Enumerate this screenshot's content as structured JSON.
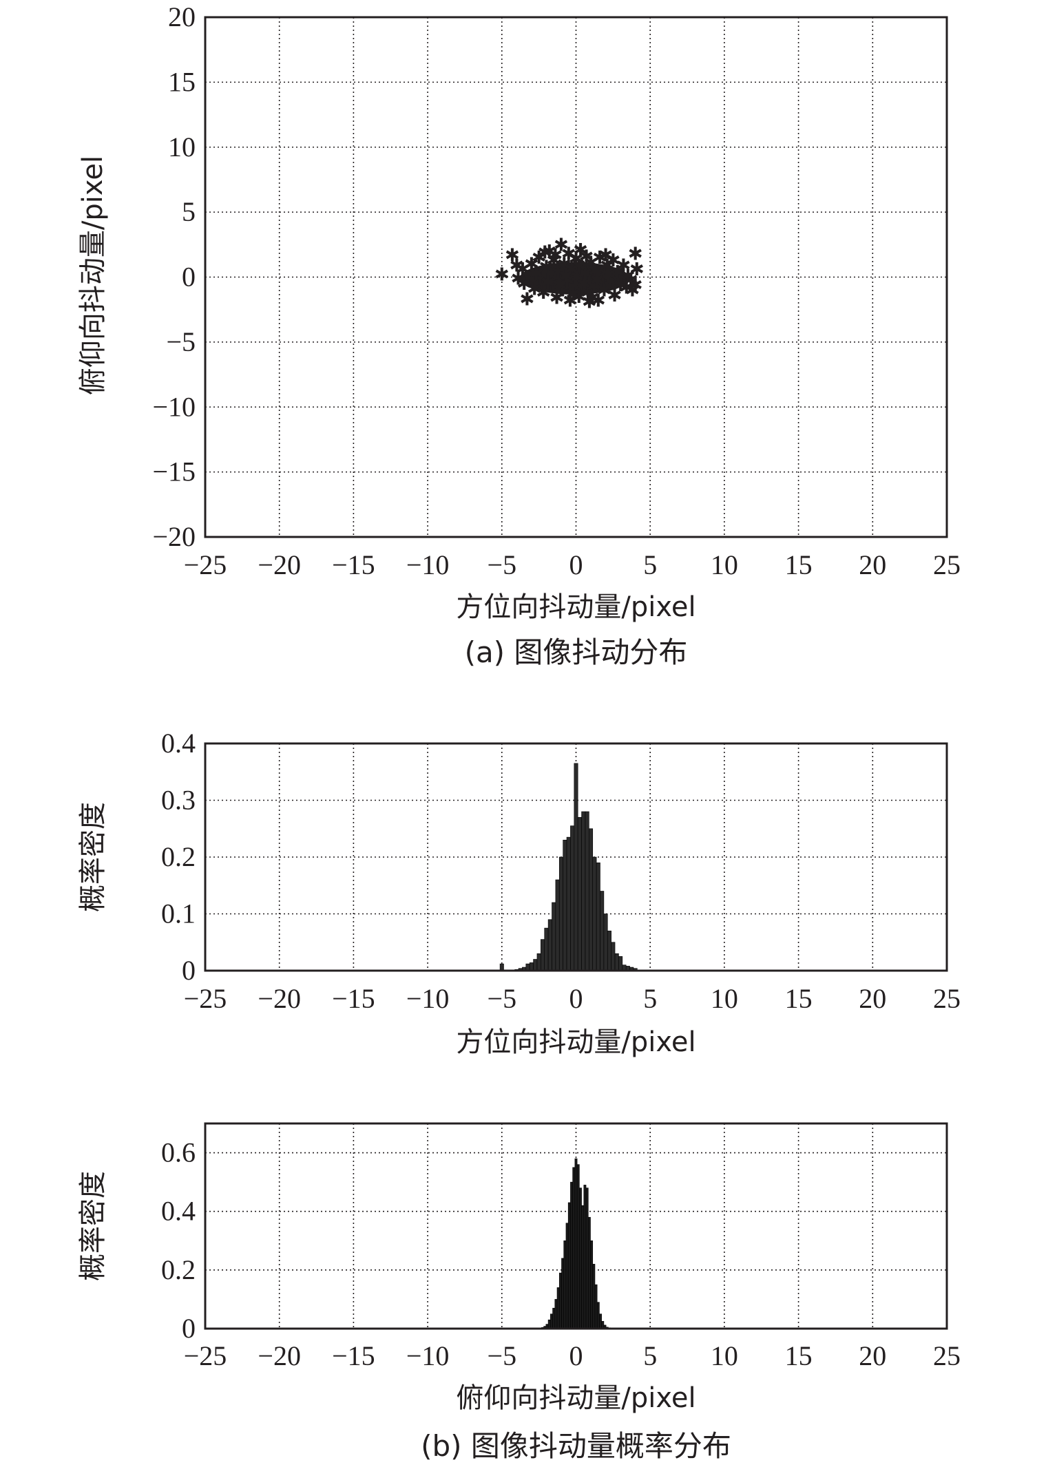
{
  "chart_data": [
    {
      "type": "scatter",
      "marker": "asterisk",
      "xlabel": "方位向抖动量/pixel",
      "ylabel": "俯仰向抖动量/pixel",
      "caption": "(a) 图像抖动分布",
      "xlim": [
        -25,
        25
      ],
      "ylim": [
        -20,
        20
      ],
      "xticks": [
        -25,
        -20,
        -15,
        -10,
        -5,
        0,
        5,
        10,
        15,
        20,
        25
      ],
      "xtick_labels": [
        "−25",
        "−20",
        "−15",
        "−10",
        "−5",
        "0",
        "5",
        "10",
        "15",
        "20",
        "25"
      ],
      "yticks": [
        -20,
        -15,
        -10,
        -5,
        0,
        5,
        10,
        15,
        20
      ],
      "ytick_labels": [
        "−20",
        "−15",
        "−10",
        "−5",
        "0",
        "5",
        "10",
        "15",
        "20"
      ],
      "grid": true,
      "points": [
        [
          -5.0,
          0.2
        ],
        [
          -4.3,
          1.7
        ],
        [
          -3.9,
          -0.1
        ],
        [
          -3.3,
          -1.7
        ],
        [
          -3.6,
          0.6
        ],
        [
          -3.0,
          1.0
        ],
        [
          -2.8,
          -0.9
        ],
        [
          -2.5,
          1.5
        ],
        [
          -2.4,
          0.0
        ],
        [
          -2.2,
          -1.2
        ],
        [
          -2.0,
          0.8
        ],
        [
          -1.8,
          2.0
        ],
        [
          -1.6,
          -0.5
        ],
        [
          -1.5,
          1.3
        ],
        [
          -1.3,
          -1.6
        ],
        [
          -1.2,
          0.4
        ],
        [
          -1.0,
          2.5
        ],
        [
          -0.9,
          -1.0
        ],
        [
          -0.8,
          1.0
        ],
        [
          -0.6,
          -0.2
        ],
        [
          -0.5,
          1.8
        ],
        [
          -0.4,
          -1.8
        ],
        [
          -0.3,
          0.6
        ],
        [
          -0.1,
          -0.8
        ],
        [
          0.0,
          1.4
        ],
        [
          0.1,
          0.0
        ],
        [
          0.2,
          -1.5
        ],
        [
          0.3,
          2.1
        ],
        [
          0.4,
          0.8
        ],
        [
          0.5,
          -0.5
        ],
        [
          0.7,
          1.6
        ],
        [
          0.8,
          -1.2
        ],
        [
          0.9,
          0.2
        ],
        [
          1.0,
          1.1
        ],
        [
          1.2,
          -0.7
        ],
        [
          1.3,
          0.5
        ],
        [
          1.5,
          -1.8
        ],
        [
          1.6,
          1.5
        ],
        [
          1.8,
          0.0
        ],
        [
          1.9,
          -1.0
        ],
        [
          2.1,
          0.9
        ],
        [
          2.3,
          -0.3
        ],
        [
          2.5,
          1.3
        ],
        [
          2.6,
          -1.4
        ],
        [
          2.8,
          0.4
        ],
        [
          3.0,
          -0.6
        ],
        [
          3.2,
          0.9
        ],
        [
          3.4,
          -0.8
        ],
        [
          3.7,
          -0.2
        ],
        [
          4.0,
          -0.6
        ],
        [
          4.1,
          0.6
        ],
        [
          4.0,
          1.8
        ],
        [
          -2.7,
          0.3
        ],
        [
          -1.9,
          -0.4
        ],
        [
          -0.7,
          0.1
        ],
        [
          0.6,
          0.3
        ],
        [
          1.4,
          -0.2
        ],
        [
          2.2,
          0.2
        ],
        [
          -1.1,
          -0.6
        ],
        [
          0.2,
          0.9
        ],
        [
          -3.5,
          -0.5
        ],
        [
          3.5,
          0.1
        ],
        [
          -0.2,
          -1.3
        ],
        [
          1.1,
          -1.6
        ],
        [
          -2.1,
          1.9
        ],
        [
          2.0,
          1.7
        ],
        [
          -1.4,
          1.7
        ],
        [
          0.9,
          -1.9
        ],
        [
          -4.0,
          0.9
        ],
        [
          3.8,
          -1.0
        ]
      ]
    },
    {
      "type": "bar",
      "xlabel": "方位向抖动量/pixel",
      "ylabel": "概率密度",
      "xlim": [
        -25,
        25
      ],
      "ylim": [
        0,
        0.4
      ],
      "xticks": [
        -25,
        -20,
        -15,
        -10,
        -5,
        0,
        5,
        10,
        15,
        20,
        25
      ],
      "xtick_labels": [
        "−25",
        "−20",
        "−15",
        "−10",
        "−5",
        "0",
        "5",
        "10",
        "15",
        "20",
        "25"
      ],
      "yticks": [
        0,
        0.1,
        0.2,
        0.3,
        0.4
      ],
      "ytick_labels": [
        "0",
        "0.1",
        "0.2",
        "0.3",
        "0.4"
      ],
      "grid": true,
      "bin_width": 0.25,
      "x": [
        -5.0,
        -4.75,
        -4.5,
        -4.25,
        -4.0,
        -3.75,
        -3.5,
        -3.25,
        -3.0,
        -2.75,
        -2.5,
        -2.25,
        -2.0,
        -1.75,
        -1.5,
        -1.25,
        -1.0,
        -0.75,
        -0.5,
        -0.25,
        0.0,
        0.25,
        0.5,
        0.75,
        1.0,
        1.25,
        1.5,
        1.75,
        2.0,
        2.25,
        2.5,
        2.75,
        3.0,
        3.25,
        3.5,
        3.75,
        4.0
      ],
      "values": [
        0.012,
        0.0,
        0.0,
        0.0,
        0.002,
        0.004,
        0.006,
        0.012,
        0.014,
        0.02,
        0.03,
        0.055,
        0.075,
        0.09,
        0.12,
        0.16,
        0.2,
        0.23,
        0.235,
        0.255,
        0.365,
        0.27,
        0.28,
        0.28,
        0.25,
        0.2,
        0.19,
        0.14,
        0.1,
        0.07,
        0.05,
        0.03,
        0.025,
        0.01,
        0.008,
        0.006,
        0.004
      ]
    },
    {
      "type": "bar",
      "xlabel": "俯仰向抖动量/pixel",
      "ylabel": "概率密度",
      "caption": "(b) 图像抖动量概率分布",
      "xlim": [
        -25,
        25
      ],
      "ylim": [
        0,
        0.7
      ],
      "xticks": [
        -25,
        -20,
        -15,
        -10,
        -5,
        0,
        5,
        10,
        15,
        20,
        25
      ],
      "xtick_labels": [
        "−25",
        "−20",
        "−15",
        "−10",
        "−5",
        "0",
        "5",
        "10",
        "15",
        "20",
        "25"
      ],
      "yticks": [
        0,
        0.2,
        0.4,
        0.6
      ],
      "ytick_labels": [
        "0",
        "0.2",
        "0.4",
        "0.6"
      ],
      "grid": true,
      "bin_width": 0.15,
      "x": [
        -2.25,
        -2.1,
        -1.95,
        -1.8,
        -1.65,
        -1.5,
        -1.35,
        -1.2,
        -1.05,
        -0.9,
        -0.75,
        -0.6,
        -0.45,
        -0.3,
        -0.15,
        0.0,
        0.15,
        0.3,
        0.45,
        0.6,
        0.75,
        0.9,
        1.05,
        1.2,
        1.35,
        1.5,
        1.65,
        1.8,
        1.95,
        2.1,
        2.25
      ],
      "values": [
        0.004,
        0.008,
        0.015,
        0.03,
        0.05,
        0.07,
        0.1,
        0.14,
        0.19,
        0.24,
        0.3,
        0.36,
        0.43,
        0.5,
        0.55,
        0.58,
        0.56,
        0.48,
        0.42,
        0.49,
        0.48,
        0.38,
        0.3,
        0.22,
        0.15,
        0.09,
        0.05,
        0.025,
        0.012,
        0.005,
        0.003
      ]
    }
  ]
}
